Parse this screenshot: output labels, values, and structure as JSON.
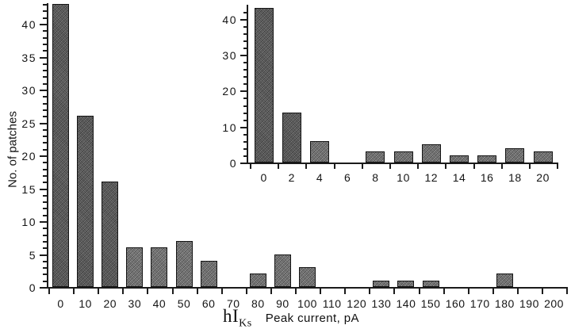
{
  "colors": {
    "background": "#ffffff",
    "ink": "#1b1b1b",
    "bar_fill": "#8d8d8d",
    "bar_fill_tall": "#6d6d6d",
    "bar_border": "#141414"
  },
  "labels": {
    "y_axis": "No. of patches",
    "x_axis_prefix": "hI",
    "x_axis_subscript": "Ks",
    "x_axis_suffix": "Peak current, pA"
  },
  "chart_data": [
    {
      "id": "main",
      "type": "bar",
      "categories": [
        0,
        10,
        20,
        30,
        40,
        50,
        60,
        70,
        80,
        90,
        100,
        110,
        120,
        130,
        140,
        150,
        160,
        170,
        180,
        190,
        200
      ],
      "values": [
        43,
        26,
        16,
        6,
        6,
        7,
        4,
        0,
        2,
        5,
        3,
        0,
        0,
        1,
        1,
        1,
        0,
        0,
        2,
        0,
        0
      ],
      "xlabel": "hIKs Peak current, pA",
      "ylabel": "No. of patches",
      "ylim": [
        0,
        43
      ],
      "y_major_tick_step": 5,
      "y_minor_tick_step": 1,
      "y_label_max": 40,
      "grid": false,
      "legend": false
    },
    {
      "id": "inset",
      "type": "bar",
      "categories": [
        0,
        2,
        4,
        6,
        8,
        10,
        12,
        14,
        16,
        18,
        20
      ],
      "values": [
        43,
        14,
        6,
        0,
        3,
        3,
        5,
        2,
        2,
        4,
        3
      ],
      "xlabel": "",
      "ylabel": "",
      "ylim": [
        0,
        43
      ],
      "y_major_tick_step": 10,
      "y_minor_tick_step": 2,
      "y_label_max": 40,
      "grid": false,
      "legend": false
    }
  ]
}
